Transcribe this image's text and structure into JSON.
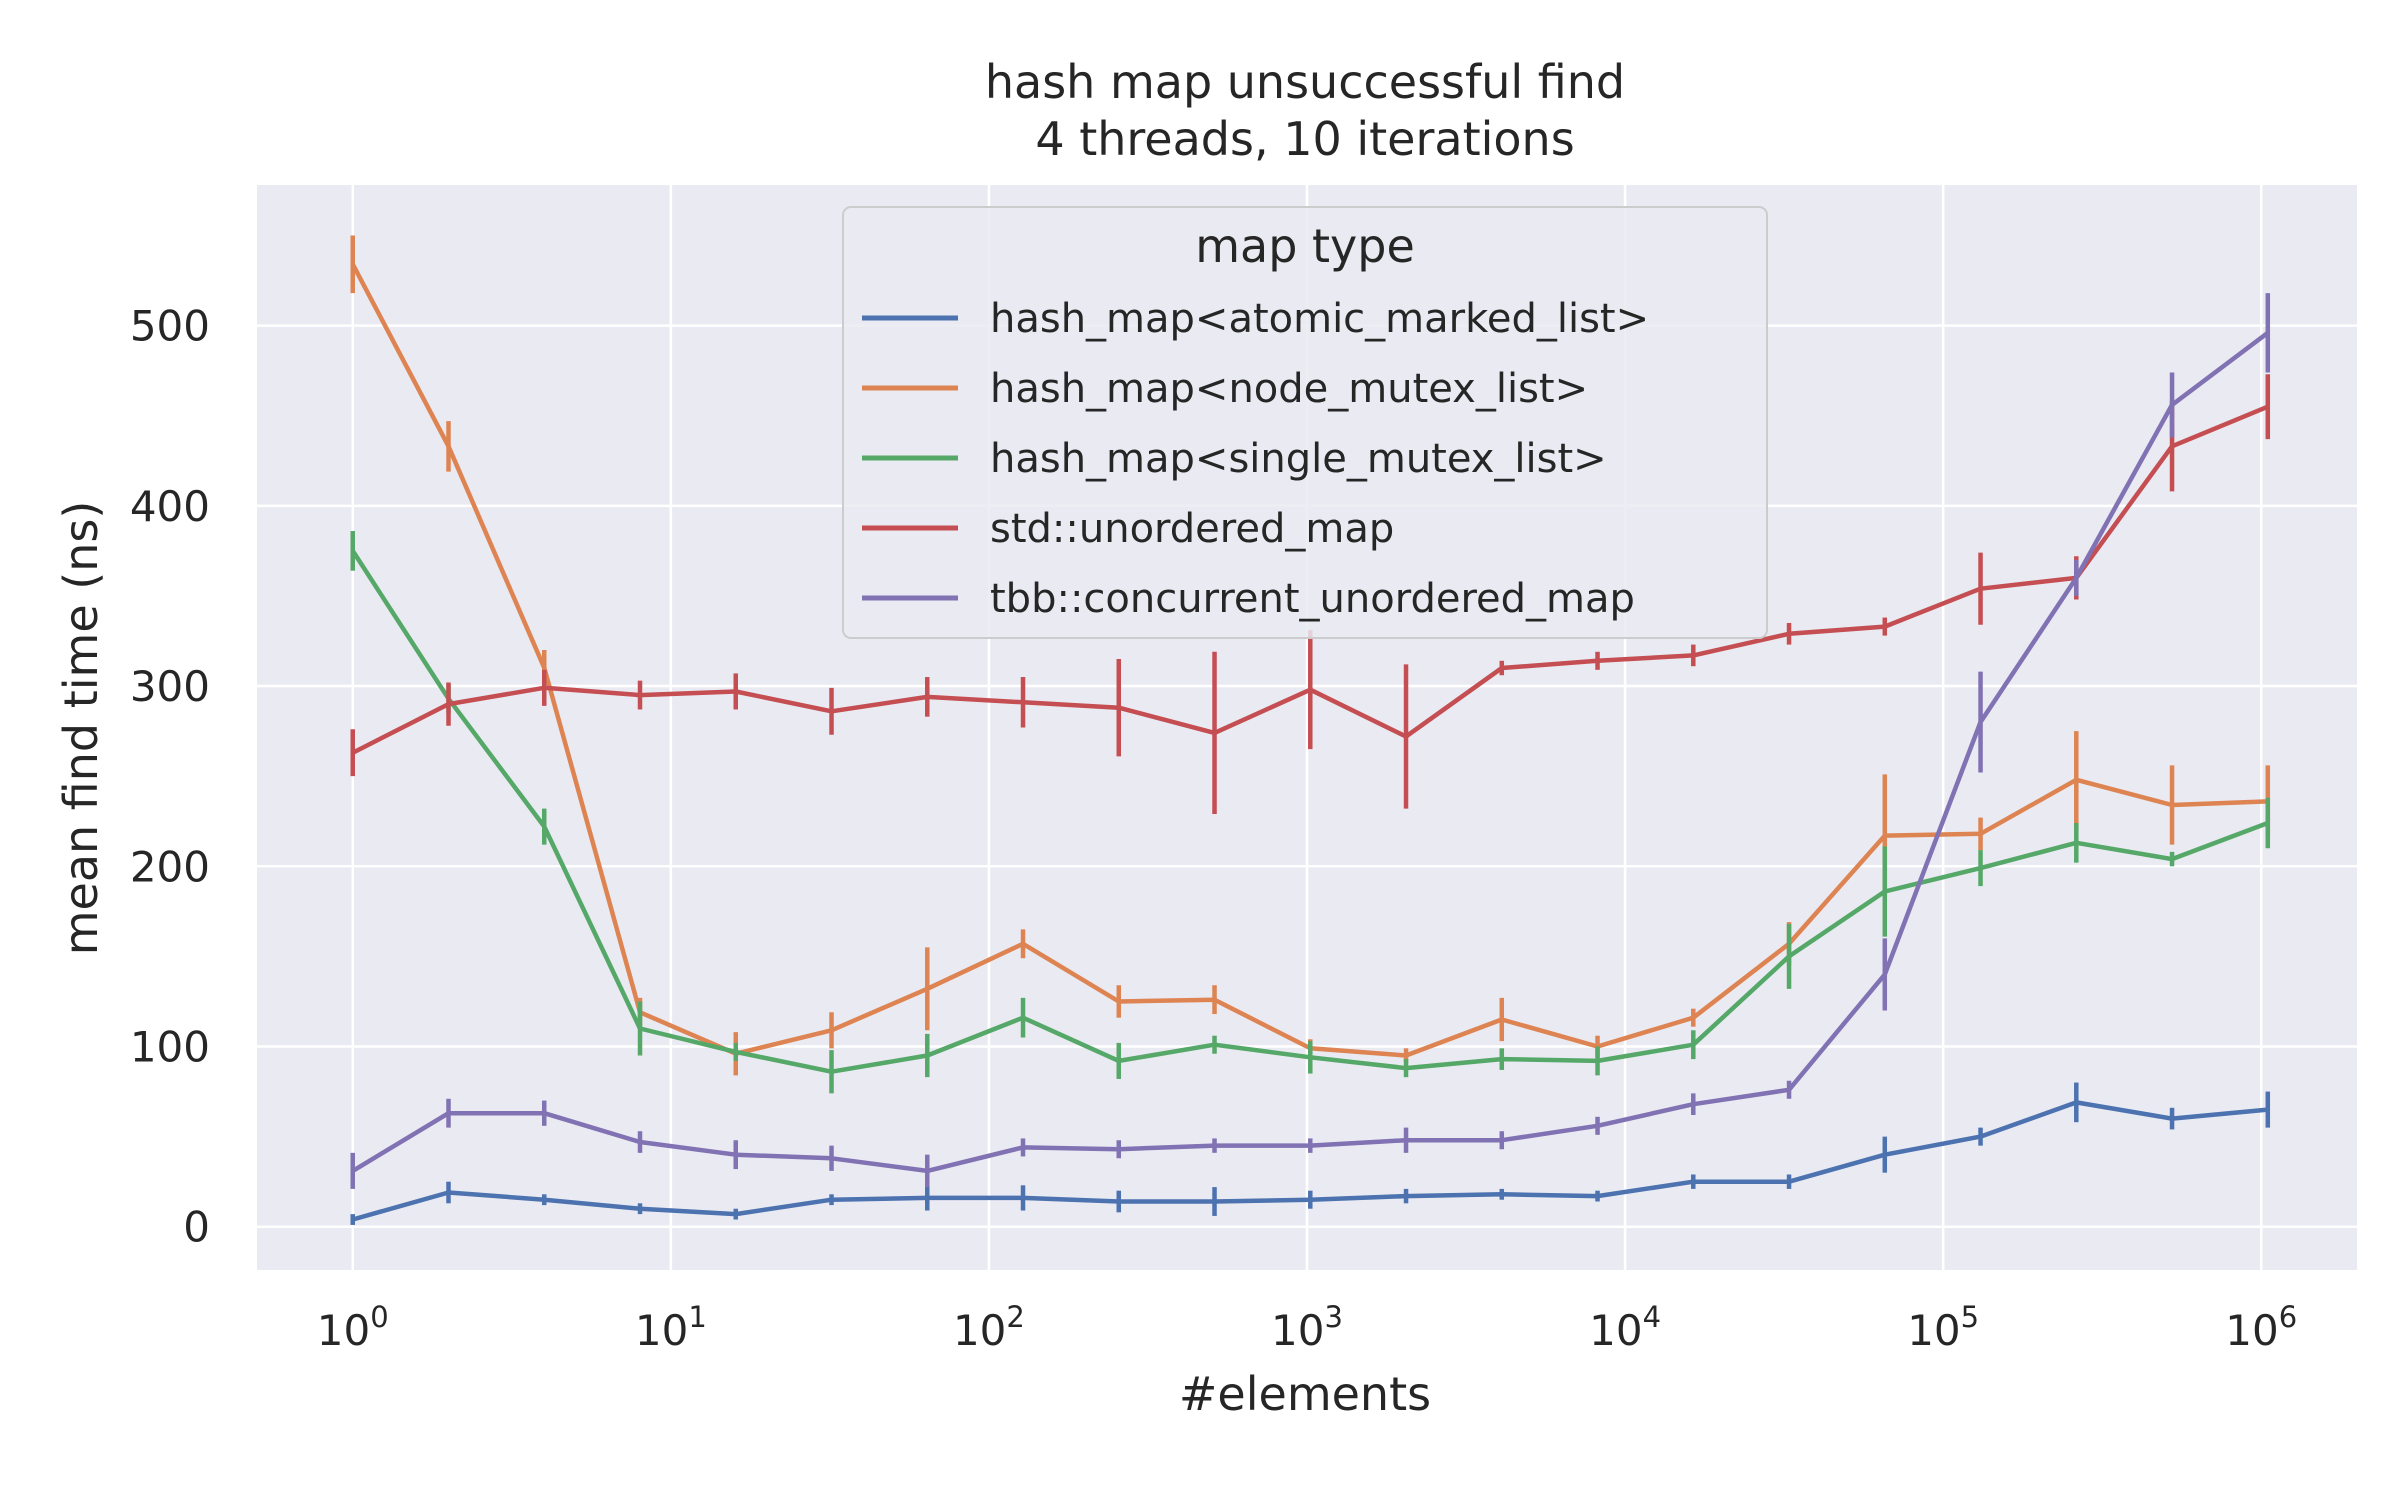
{
  "chart_data": {
    "type": "line",
    "title": [
      "hash map unsuccessful find",
      "4 threads, 10 iterations"
    ],
    "xlabel": "#elements",
    "ylabel": "mean find time (ns)",
    "xscale": "log",
    "xlim": [
      0.5,
      2000000
    ],
    "ylim": [
      -24,
      578
    ],
    "x_ticks": [
      1,
      10,
      100,
      1000,
      10000,
      100000,
      1000000
    ],
    "x_tick_labels": [
      {
        "base": "10",
        "exp": "0"
      },
      {
        "base": "10",
        "exp": "1"
      },
      {
        "base": "10",
        "exp": "2"
      },
      {
        "base": "10",
        "exp": "3"
      },
      {
        "base": "10",
        "exp": "4"
      },
      {
        "base": "10",
        "exp": "5"
      },
      {
        "base": "10",
        "exp": "6"
      }
    ],
    "y_ticks": [
      0,
      100,
      200,
      300,
      400,
      500
    ],
    "y_tick_labels": [
      "0",
      "100",
      "200",
      "300",
      "400",
      "500"
    ],
    "grid": true,
    "background": "#eaeaf2",
    "legend": {
      "title": "map type",
      "placement": "top-center"
    },
    "x": [
      1,
      2,
      4,
      8,
      16,
      32,
      64,
      128,
      256,
      512,
      1024,
      2048,
      4096,
      8192,
      16384,
      32768,
      65536,
      131072,
      262144,
      524288,
      1048576
    ],
    "series": [
      {
        "name": "hash_map<atomic_marked_list>",
        "color": "#4c72b0",
        "values": [
          4,
          19,
          15,
          10,
          7,
          15,
          16,
          16,
          14,
          14,
          15,
          17,
          18,
          17,
          25,
          25,
          40,
          50,
          69,
          60,
          65
        ],
        "errors": [
          3,
          6,
          3,
          3,
          3,
          3,
          7,
          7,
          6,
          8,
          5,
          4,
          3,
          3,
          4,
          4,
          10,
          5,
          11,
          6,
          10
        ]
      },
      {
        "name": "hash_map<node_mutex_list>",
        "color": "#dd8452",
        "values": [
          534,
          433,
          310,
          119,
          96,
          109,
          132,
          157,
          125,
          126,
          99,
          95,
          115,
          100,
          116,
          157,
          217,
          218,
          248,
          234,
          236
        ],
        "errors": [
          16,
          14,
          10,
          8,
          12,
          10,
          23,
          8,
          9,
          8,
          5,
          4,
          12,
          6,
          5,
          12,
          34,
          9,
          27,
          22,
          20
        ]
      },
      {
        "name": "hash_map<single_mutex_list>",
        "color": "#55a868",
        "values": [
          375,
          293,
          222,
          110,
          97,
          86,
          95,
          116,
          92,
          101,
          94,
          88,
          93,
          92,
          101,
          150,
          186,
          199,
          213,
          204,
          224
        ],
        "errors": [
          11,
          8,
          10,
          15,
          5,
          12,
          12,
          11,
          10,
          5,
          9,
          5,
          6,
          8,
          8,
          18,
          25,
          10,
          11,
          4,
          14
        ]
      },
      {
        "name": "std::unordered_map",
        "color": "#c44e52",
        "values": [
          263,
          290,
          299,
          295,
          297,
          286,
          294,
          291,
          288,
          274,
          298,
          272,
          310,
          314,
          317,
          329,
          333,
          354,
          360,
          433,
          455
        ],
        "errors": [
          13,
          12,
          10,
          8,
          10,
          13,
          11,
          14,
          27,
          45,
          33,
          40,
          4,
          5,
          6,
          6,
          5,
          20,
          12,
          25,
          18
        ]
      },
      {
        "name": "tbb::concurrent_unordered_map",
        "color": "#8172b3",
        "values": [
          31,
          63,
          63,
          47,
          40,
          38,
          31,
          44,
          43,
          45,
          45,
          48,
          48,
          56,
          68,
          76,
          140,
          280,
          360,
          456,
          496
        ],
        "errors": [
          10,
          8,
          7,
          6,
          8,
          7,
          9,
          5,
          5,
          4,
          4,
          7,
          5,
          5,
          6,
          5,
          20,
          28,
          10,
          18,
          22
        ]
      }
    ]
  }
}
